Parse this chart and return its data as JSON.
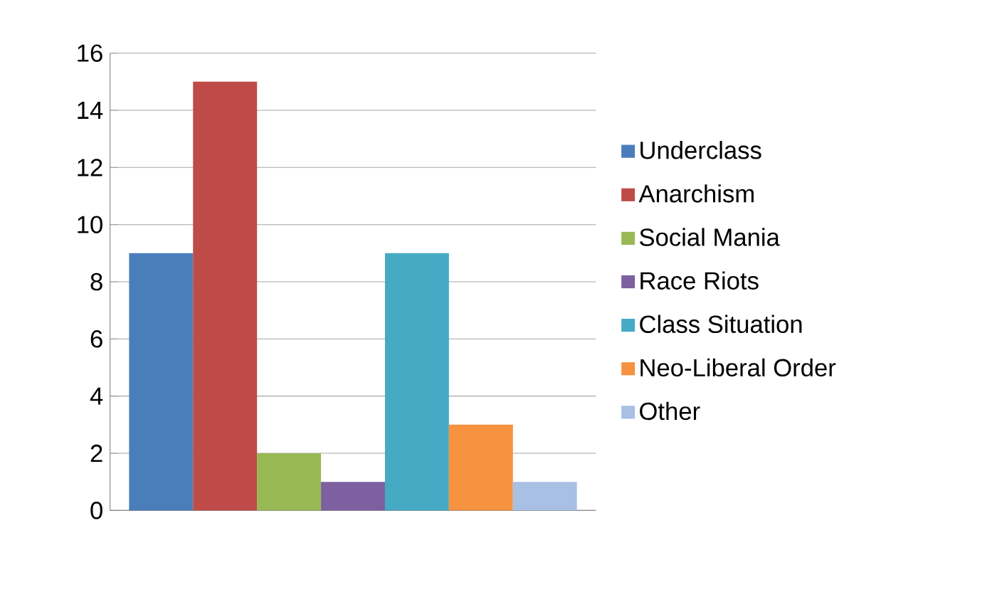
{
  "chart_data": {
    "type": "bar",
    "categories": [
      null
    ],
    "series": [
      {
        "name": "Underclass",
        "color": "#4a7ebb",
        "values": [
          9
        ]
      },
      {
        "name": "Anarchism",
        "color": "#be4b48",
        "values": [
          15
        ]
      },
      {
        "name": "Social Mania",
        "color": "#98b954",
        "values": [
          2
        ]
      },
      {
        "name": "Race Riots",
        "color": "#7d60a0",
        "values": [
          1
        ]
      },
      {
        "name": "Class Situation",
        "color": "#46aac5",
        "values": [
          9
        ]
      },
      {
        "name": "Neo-Liberal Order",
        "color": "#f69240",
        "values": [
          3
        ]
      },
      {
        "name": "Other",
        "color": "#a7c0e3",
        "values": [
          1
        ]
      }
    ],
    "ylim": [
      0,
      16
    ],
    "yticks": [
      0,
      2,
      4,
      6,
      8,
      10,
      12,
      14,
      16
    ],
    "grid": "y",
    "legend": "right"
  }
}
